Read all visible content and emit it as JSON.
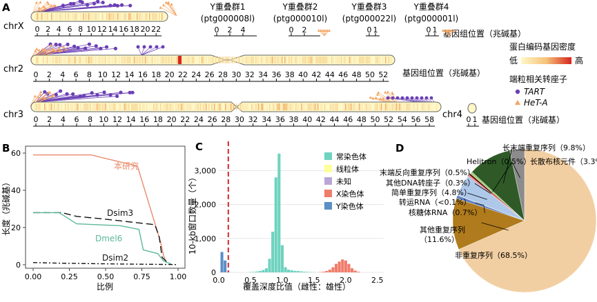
{
  "panels": {
    "A": {
      "label": "A",
      "chromosomes": {
        "chrX": {
          "name": "chrX",
          "ticks": [
            "0",
            "2",
            "4",
            "6",
            "8",
            "10",
            "12",
            "14",
            "16",
            "18",
            "20",
            "22"
          ]
        },
        "chr2": {
          "name": "chr2",
          "ticks": [
            "0",
            "2",
            "4",
            "6",
            "8",
            "10",
            "12",
            "14",
            "16",
            "18",
            "20",
            "22",
            "24",
            "26",
            "28",
            "30",
            "32",
            "34",
            "36",
            "38",
            "40",
            "42",
            "44",
            "46",
            "48",
            "50",
            "52"
          ]
        },
        "chr3": {
          "name": "chr3",
          "ticks": [
            "0",
            "2",
            "4",
            "6",
            "8",
            "10",
            "12",
            "14",
            "16",
            "18",
            "20",
            "22",
            "24",
            "26",
            "28",
            "30",
            "32",
            "34",
            "36",
            "38",
            "40",
            "42",
            "44",
            "46",
            "48",
            "50",
            "52",
            "54",
            "56",
            "58"
          ]
        },
        "chr4": {
          "name": "chr4",
          "ticks": [
            "0",
            "1"
          ]
        }
      },
      "y_scaffolds": [
        {
          "title": "Y重叠群1",
          "id": "(ptg000008l)",
          "ticks": [
            "0",
            "2",
            "4"
          ]
        },
        {
          "title": "Y重叠群2",
          "id": "(ptg000010l)",
          "ticks": [
            "0",
            "2"
          ]
        },
        {
          "title": "Y重叠群3",
          "id": "(ptg000022l)",
          "ticks": [
            "0",
            "1"
          ]
        },
        {
          "title": "Y重叠群4",
          "id": "(ptg000001l)",
          "ticks": [
            "0",
            "1"
          ]
        }
      ],
      "axis_label": "基因组位置（兆碱基）",
      "legend": {
        "density_title": "蛋白编码基因密度",
        "low": "低",
        "high": "高",
        "te_title": "端粒相关转座子",
        "tart": "TART",
        "heta": "HeT-A",
        "colors": {
          "low": "#fff7c7",
          "high": "#d7261e",
          "tart": "#6a3fb5",
          "heta": "#f4a460"
        }
      }
    },
    "B": {
      "label": "B",
      "chart_data": {
        "type": "line",
        "xlabel": "比例",
        "ylabel": "长度（兆碱基）",
        "xlim": [
          0,
          1
        ],
        "ylim": [
          0,
          60
        ],
        "x_ticks": [
          "0.00",
          "0.25",
          "0.50",
          "0.75",
          "1.00"
        ],
        "y_ticks": [
          "0",
          "20",
          "40",
          "60"
        ],
        "series": [
          {
            "name": "本研究",
            "color": "#e98a6b",
            "dash": "",
            "points": [
              [
                0,
                59
              ],
              [
                0.4,
                59
              ],
              [
                0.72,
                53
              ],
              [
                0.88,
                12
              ],
              [
                0.9,
                5
              ],
              [
                0.92,
                1
              ]
            ]
          },
          {
            "name": "Dsim3",
            "color": "#111111",
            "dash": "10 5",
            "points": [
              [
                0,
                28
              ],
              [
                0.2,
                28
              ],
              [
                0.3,
                26
              ],
              [
                0.5,
                24.5
              ],
              [
                0.84,
                21.5
              ],
              [
                0.87,
                15
              ],
              [
                0.89,
                4
              ],
              [
                0.93,
                1
              ]
            ]
          },
          {
            "name": "Dmel6",
            "color": "#5bb89a",
            "dash": "",
            "points": [
              [
                0,
                28
              ],
              [
                0.18,
                28
              ],
              [
                0.3,
                22
              ],
              [
                0.6,
                21
              ],
              [
                0.73,
                19
              ],
              [
                0.76,
                8
              ],
              [
                0.86,
                6
              ],
              [
                0.9,
                2
              ],
              [
                0.95,
                0.5
              ]
            ]
          },
          {
            "name": "Dsim2",
            "color": "#111111",
            "dash": "6 3 2 3",
            "points": [
              [
                0,
                1.2
              ],
              [
                0.2,
                0.8
              ],
              [
                0.6,
                0.4
              ],
              [
                1,
                0.1
              ]
            ]
          }
        ]
      }
    },
    "C": {
      "label": "C",
      "chart_data": {
        "type": "bar",
        "xlabel": "覆盖深度比值（雌性：雄性）",
        "ylabel": "10-kb窗口数量（个）",
        "xlim": [
          0,
          2.6
        ],
        "ylim": [
          0,
          3700
        ],
        "x_ticks": [
          "0.0",
          "0.5",
          "1.0",
          "1.5",
          "2.0",
          "2.5"
        ],
        "y_ticks": [
          "0",
          "1,000",
          "2,000",
          "3,000"
        ],
        "threshold": 0.15,
        "bin_width": 0.05,
        "series": [
          {
            "name": "常染色体",
            "color": "#6ed3bf",
            "x": [
              0.5,
              0.55,
              0.6,
              0.65,
              0.7,
              0.75,
              0.8,
              0.85,
              0.9,
              0.95,
              1.0,
              1.05,
              1.1,
              1.15,
              1.2,
              1.25,
              1.3,
              1.35,
              1.4,
              1.45,
              1.5
            ],
            "values": [
              10,
              15,
              25,
              40,
              70,
              120,
              400,
              1200,
              2800,
              3500,
              800,
              150,
              80,
              60,
              45,
              40,
              30,
              20,
              15,
              10,
              8
            ]
          },
          {
            "name": "线粒体",
            "color": "#ffff99",
            "x": [],
            "values": []
          },
          {
            "name": "未知",
            "color": "#b9a6d6",
            "x": [
              0.05,
              0.1,
              0.15
            ],
            "values": [
              20,
              25,
              15
            ]
          },
          {
            "name": "X染色体",
            "color": "#f07c6a",
            "x": [
              1.6,
              1.65,
              1.7,
              1.75,
              1.8,
              1.85,
              1.9,
              1.95,
              2.0,
              2.05,
              2.1,
              2.15,
              2.2
            ],
            "values": [
              10,
              20,
              40,
              80,
              150,
              250,
              320,
              380,
              350,
              250,
              120,
              50,
              20
            ]
          },
          {
            "name": "Y染色体",
            "color": "#5b8fc7",
            "x": [
              0.05,
              0.1
            ],
            "values": [
              600,
              350
            ]
          }
        ]
      }
    },
    "D": {
      "label": "D",
      "chart_data": {
        "type": "pie",
        "slices": [
          {
            "name": "非重复序列",
            "label": "非重复序列（68.5%）",
            "value": 68.5,
            "color": "#f2cfa2"
          },
          {
            "name": "其他重复序列",
            "label": "其他重复序列\n（11.6%）",
            "value": 11.6,
            "color": "#b07b1c"
          },
          {
            "name": "核糖体RNA",
            "label": "核糖体RNA（0.7%）",
            "value": 0.7,
            "color": "#5d7fbf"
          },
          {
            "name": "转运RNA",
            "label": "转运RNA（<0.1%）",
            "value": 0.1,
            "color": "#3a5fa0"
          },
          {
            "name": "简单重复序列",
            "label": "简单重复序列（4.8%）",
            "value": 4.8,
            "color": "#aec8ea"
          },
          {
            "name": "其他DNA转座子",
            "label": "其他DNA转座子（0.3%）",
            "value": 0.3,
            "color": "#e7858d"
          },
          {
            "name": "末端反向重复序列",
            "label": "末端反向重复序列（0.5%）",
            "value": 0.5,
            "color": "#c0392b"
          },
          {
            "name": "Helitron",
            "label": "Helitron（0.5%）",
            "value": 0.5,
            "color": "#9bd17c"
          },
          {
            "name": "长末端重复序列",
            "label": "长末端重复序列（9.8%）",
            "value": 9.8,
            "color": "#2f5a28"
          },
          {
            "name": "长散布核元件",
            "label": "长散布核元件（3.3%）",
            "value": 3.3,
            "color": "#8c8c8c"
          }
        ]
      }
    }
  }
}
